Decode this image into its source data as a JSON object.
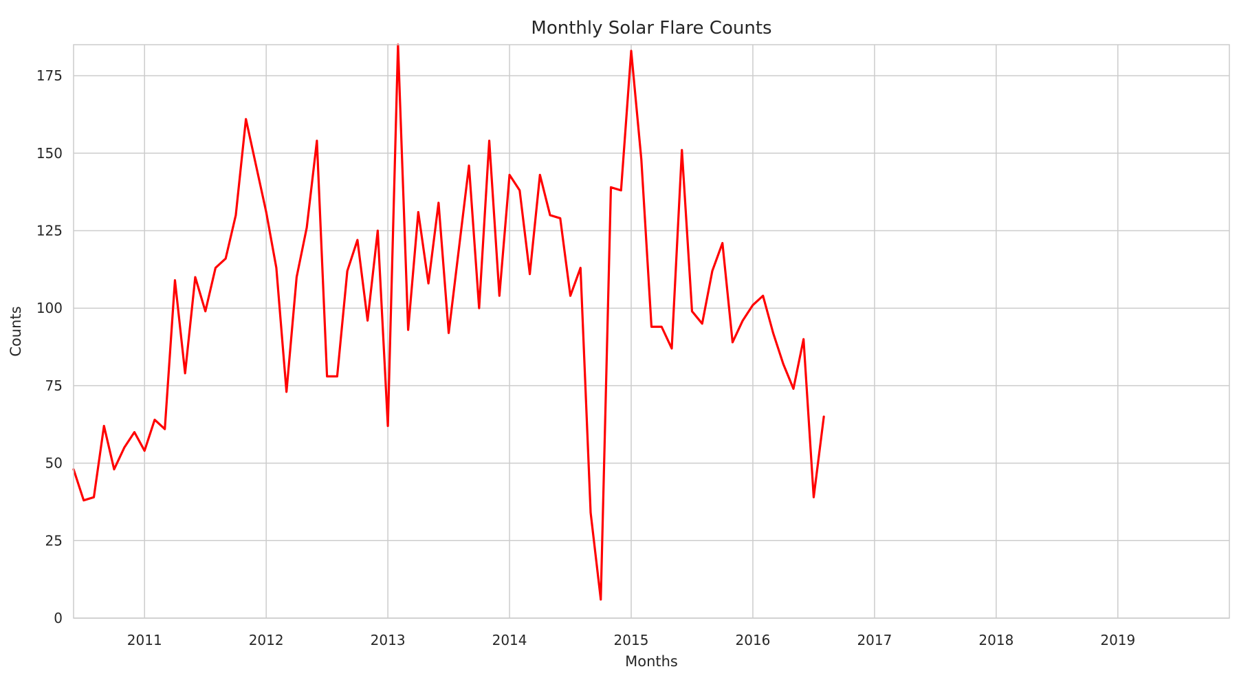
{
  "chart_data": {
    "type": "line",
    "title": "Monthly Solar Flare Counts",
    "xlabel": "Months",
    "ylabel": "Counts",
    "x_axis_type": "date",
    "xlim": [
      "2010-06",
      "2019-12"
    ],
    "ylim": [
      0,
      185
    ],
    "x_ticks": [
      "2011",
      "2012",
      "2013",
      "2014",
      "2015",
      "2016",
      "2017",
      "2018",
      "2019"
    ],
    "y_ticks": [
      "0",
      "25",
      "50",
      "75",
      "100",
      "125",
      "150",
      "175"
    ],
    "grid": true,
    "legend": "none",
    "line_color": "#ff0000",
    "series": [
      {
        "x": [
          "2010-06",
          "2010-07",
          "2010-08",
          "2010-09",
          "2010-10",
          "2010-11",
          "2010-12",
          "2011-01",
          "2011-02",
          "2011-03",
          "2011-04",
          "2011-05",
          "2011-06",
          "2011-07",
          "2011-08",
          "2011-09",
          "2011-10",
          "2011-11",
          "2011-12",
          "2012-01",
          "2012-02",
          "2012-03",
          "2012-04",
          "2012-05",
          "2012-06",
          "2012-07",
          "2012-08",
          "2012-09",
          "2012-10",
          "2012-11",
          "2012-12",
          "2013-01",
          "2013-02",
          "2013-03",
          "2013-04",
          "2013-05",
          "2013-06",
          "2013-07",
          "2013-08",
          "2013-09",
          "2013-10",
          "2013-11",
          "2013-12",
          "2014-01",
          "2014-02",
          "2014-03",
          "2014-04",
          "2014-05",
          "2014-06",
          "2014-07",
          "2014-08",
          "2014-09",
          "2014-10",
          "2014-11",
          "2014-12",
          "2015-01",
          "2015-02",
          "2015-03",
          "2015-04",
          "2015-05",
          "2015-06",
          "2015-07",
          "2015-08",
          "2015-09",
          "2015-10",
          "2015-11",
          "2015-12",
          "2016-01",
          "2016-02",
          "2016-03",
          "2016-04",
          "2016-05",
          "2016-06",
          "2016-07",
          "2016-08"
        ],
        "values": [
          48,
          38,
          39,
          62,
          48,
          55,
          60,
          54,
          64,
          61,
          109,
          79,
          110,
          99,
          113,
          116,
          130,
          161,
          146,
          131,
          113,
          73,
          110,
          126,
          154,
          78,
          78,
          112,
          122,
          96,
          125,
          62,
          185,
          93,
          131,
          108,
          134,
          92,
          119,
          146,
          100,
          154,
          104,
          143,
          138,
          111,
          143,
          130,
          129,
          104,
          113,
          34,
          6,
          139,
          138,
          183,
          148,
          94,
          94,
          87,
          151,
          99,
          95,
          112,
          121,
          89,
          96,
          101,
          104,
          92,
          82,
          74,
          90,
          39,
          65
        ]
      }
    ]
  }
}
